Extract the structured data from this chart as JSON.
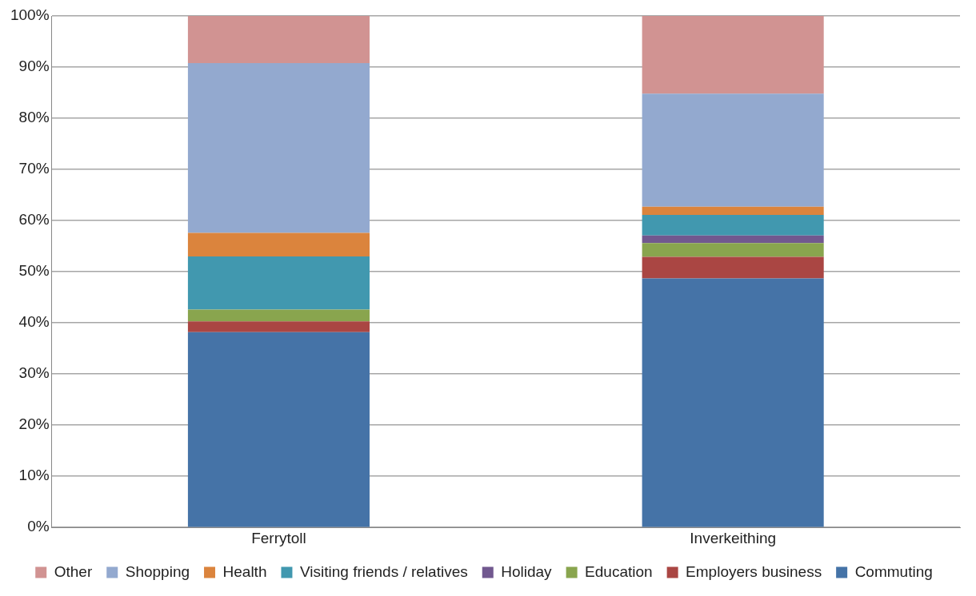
{
  "chart_data": {
    "type": "bar",
    "stacked": true,
    "categories": [
      "Ferrytoll",
      "Inverkeithing"
    ],
    "series": [
      {
        "name": "Commuting",
        "color": "#4573a7",
        "values": [
          38.2,
          48.7
        ]
      },
      {
        "name": "Employers business",
        "color": "#aa4643",
        "values": [
          2.1,
          4.2
        ]
      },
      {
        "name": "Education",
        "color": "#89a54e",
        "values": [
          2.3,
          2.7
        ]
      },
      {
        "name": "Holiday",
        "color": "#71588f",
        "values": [
          0,
          1.5
        ]
      },
      {
        "name": "Visiting friends / relatives",
        "color": "#4198af",
        "values": [
          10.4,
          4.0
        ]
      },
      {
        "name": "Health",
        "color": "#db843d",
        "values": [
          4.6,
          1.6
        ]
      },
      {
        "name": "Shopping",
        "color": "#93a9cf",
        "values": [
          33.2,
          22.1
        ]
      },
      {
        "name": "Other",
        "color": "#d19392",
        "values": [
          9.2,
          15.2
        ]
      }
    ],
    "ylim": [
      0,
      100
    ],
    "yticks": [
      {
        "value": 0,
        "label": "0%"
      },
      {
        "value": 10,
        "label": "10%"
      },
      {
        "value": 20,
        "label": "20%"
      },
      {
        "value": 30,
        "label": "30%"
      },
      {
        "value": 40,
        "label": "40%"
      },
      {
        "value": 50,
        "label": "50%"
      },
      {
        "value": 60,
        "label": "60%"
      },
      {
        "value": 70,
        "label": "70%"
      },
      {
        "value": 80,
        "label": "80%"
      },
      {
        "value": 90,
        "label": "90%"
      },
      {
        "value": 100,
        "label": "100%"
      }
    ],
    "grid": "y",
    "legend": "bottom"
  }
}
